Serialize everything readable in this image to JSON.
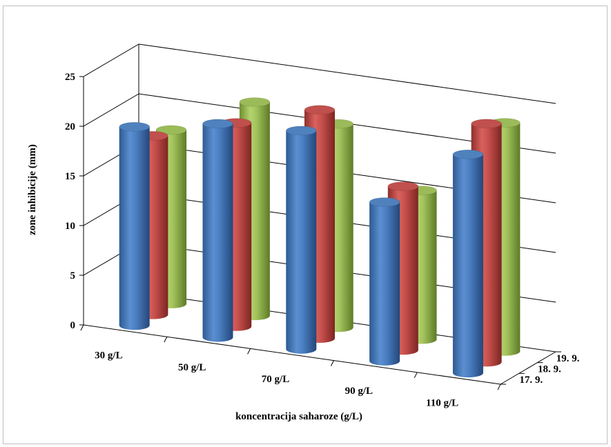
{
  "chart_data": {
    "type": "bar",
    "title": "",
    "xlabel": "koncentracija saharoze (g/L)",
    "ylabel": "zone inhibicije (mm)",
    "ylim": [
      0,
      25
    ],
    "yticks": [
      "0",
      "5",
      "10",
      "15",
      "20",
      "25"
    ],
    "categories": [
      "30 g/L",
      "50 g/L",
      "70 g/L",
      "90 g/L",
      "110 g/L"
    ],
    "depth_labels": [
      "17. 9.",
      "18. 9.",
      "19. 9."
    ],
    "series": [
      {
        "name": "17. 9.",
        "color": "#4f81bd",
        "values": [
          20,
          21.5,
          22,
          16,
          22
        ]
      },
      {
        "name": "18. 9.",
        "color": "#c0504d",
        "values": [
          18,
          20.5,
          23,
          16.5,
          24
        ]
      },
      {
        "name": "19. 9.",
        "color": "#9bbb59",
        "values": [
          17.5,
          21.5,
          20.5,
          15,
          23
        ]
      }
    ],
    "grid": true,
    "shape": "cylinder"
  }
}
